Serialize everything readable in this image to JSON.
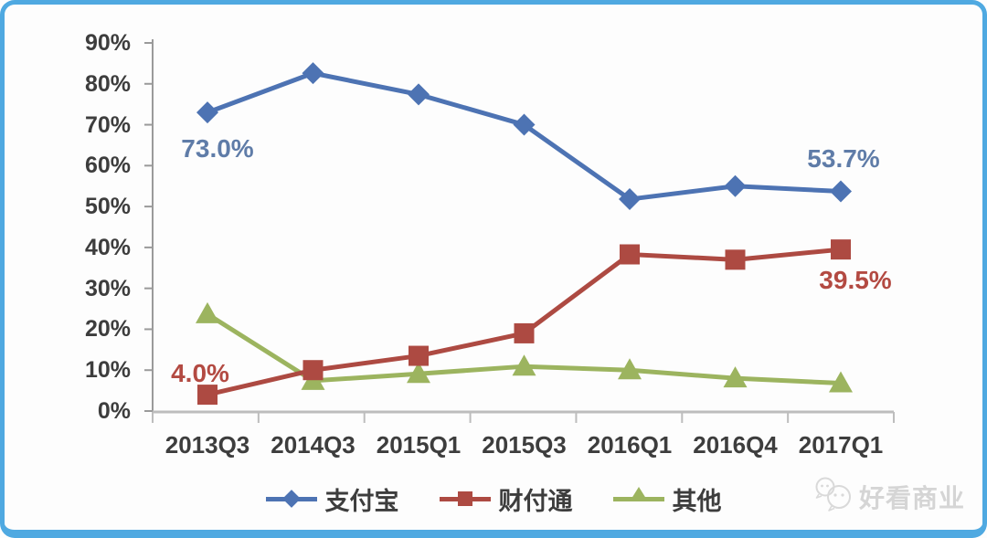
{
  "chart_data": {
    "type": "line",
    "categories": [
      "2013Q3",
      "2014Q3",
      "2015Q1",
      "2015Q3",
      "2016Q1",
      "2016Q4",
      "2017Q1"
    ],
    "series": [
      {
        "name": "支付宝",
        "marker": "diamond",
        "color": "#4d73b3",
        "values": [
          73.0,
          82.6,
          77.4,
          70.0,
          51.8,
          55.0,
          53.7
        ]
      },
      {
        "name": "财付通",
        "marker": "square",
        "color": "#ad4a42",
        "values": [
          4.0,
          10.0,
          13.5,
          19.0,
          38.3,
          37.0,
          39.5
        ]
      },
      {
        "name": "其他",
        "marker": "triangle",
        "color": "#9cb45f",
        "values": [
          23.7,
          7.4,
          9.1,
          10.9,
          10.0,
          8.0,
          6.8
        ]
      }
    ],
    "title": "",
    "xlabel": "",
    "ylabel": "",
    "ylim": [
      0,
      90
    ],
    "y_ticks": [
      "90%",
      "80%",
      "70%",
      "60%",
      "50%",
      "40%",
      "30%",
      "20%",
      "10%",
      "0%"
    ],
    "grid": false,
    "legend_position": "bottom",
    "annotations": [
      {
        "series": "支付宝",
        "point": "2013Q3",
        "text": "73.0%",
        "color": "#5f7ca8"
      },
      {
        "series": "支付宝",
        "point": "2017Q1",
        "text": "53.7%",
        "color": "#5f7ca8"
      },
      {
        "series": "财付通",
        "point": "2013Q3",
        "text": "4.0%",
        "color": "#b34a42"
      },
      {
        "series": "财付通",
        "point": "2017Q1",
        "text": "39.5%",
        "color": "#b34a42"
      }
    ],
    "axis_text_color": "#3d3d3d",
    "y_axis_color": "#9a9a9a",
    "x_axis_color": "#bdbdbd"
  },
  "watermark": {
    "text": "好看商业",
    "icon": "wechat-icon",
    "color": "#d5d5d5"
  },
  "frame": {
    "border_color": "#4fa9e1",
    "background": "#ffffff"
  }
}
